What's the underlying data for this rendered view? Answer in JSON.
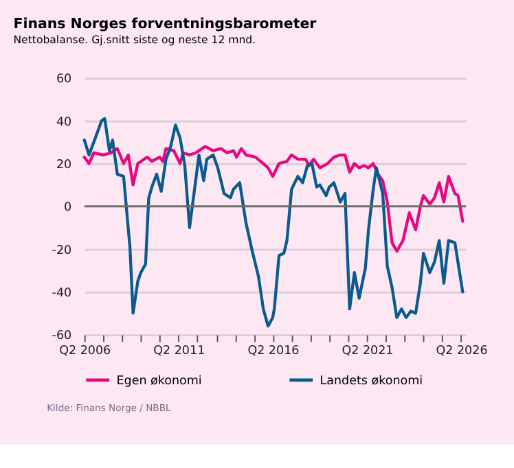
{
  "chart_data": {
    "type": "line",
    "title": "Finans  Norges forventningsbarometer",
    "subtitle": "Nettobalanse. Gj.snitt siste og neste 12 mnd.",
    "annotations": [
      "Kilde: Finans Norge / NBBL"
    ],
    "xlim": [
      "2006-04",
      "2026-07"
    ],
    "xticks": [
      {
        "value": "2006-04",
        "label": "Q2 2006"
      },
      {
        "value": "2007-04",
        "label": null
      },
      {
        "value": "2008-04",
        "label": null
      },
      {
        "value": "2009-04",
        "label": null
      },
      {
        "value": "2010-04",
        "label": null
      },
      {
        "value": "2011-04",
        "label": "Q2 2011"
      },
      {
        "value": "2012-04",
        "label": null
      },
      {
        "value": "2013-04",
        "label": null
      },
      {
        "value": "2014-04",
        "label": null
      },
      {
        "value": "2015-04",
        "label": null
      },
      {
        "value": "2016-04",
        "label": "Q2 2016"
      },
      {
        "value": "2017-04",
        "label": null
      },
      {
        "value": "2018-04",
        "label": null
      },
      {
        "value": "2019-04",
        "label": null
      },
      {
        "value": "2020-04",
        "label": null
      },
      {
        "value": "2021-04",
        "label": "Q2 2021"
      },
      {
        "value": "2022-04",
        "label": null
      },
      {
        "value": "2023-04",
        "label": null
      },
      {
        "value": "2024-04",
        "label": null
      },
      {
        "value": "2025-04",
        "label": null
      },
      {
        "value": "2026-04",
        "label": "Q2 2026"
      }
    ],
    "ylim": [
      -60,
      60
    ],
    "yticks": [
      -60,
      -40,
      -20,
      0,
      20,
      40,
      60
    ],
    "grid": "y",
    "legend": "bottom",
    "marker": "none",
    "line_style": "solid",
    "ref_lines": [
      {
        "axis": "y",
        "value": 0,
        "label": null,
        "color": "#6b6b6b"
      }
    ],
    "series": [
      {
        "name": "Egen økonomi",
        "color": "#e6087f",
        "x": [
          "2006-04",
          "2006-07",
          "2006-10",
          "2007-04",
          "2007-09",
          "2008-01",
          "2008-05",
          "2008-08",
          "2008-11",
          "2009-02",
          "2009-08",
          "2009-11",
          "2010-04",
          "2010-06",
          "2010-08",
          "2011-01",
          "2011-05",
          "2011-07",
          "2011-11",
          "2012-03",
          "2012-09",
          "2013-02",
          "2013-07",
          "2013-11",
          "2014-03",
          "2014-05",
          "2014-08",
          "2014-11",
          "2015-05",
          "2015-10",
          "2016-01",
          "2016-04",
          "2016-08",
          "2017-01",
          "2017-04",
          "2017-08",
          "2018-01",
          "2018-03",
          "2018-06",
          "2018-10",
          "2019-03",
          "2019-07",
          "2019-11",
          "2020-02",
          "2020-05",
          "2020-08",
          "2020-11",
          "2021-02",
          "2021-05",
          "2021-08",
          "2021-11",
          "2022-02",
          "2022-05",
          "2022-08",
          "2022-11",
          "2023-03",
          "2023-07",
          "2023-11",
          "2024-02",
          "2024-04",
          "2024-08",
          "2024-11",
          "2025-02",
          "2025-05",
          "2025-08",
          "2025-12",
          "2026-02",
          "2026-05"
        ],
        "values": [
          23,
          20,
          25,
          24,
          25,
          27,
          20,
          24,
          10,
          20,
          23,
          21,
          23,
          21,
          27,
          26,
          20,
          25,
          24,
          25,
          28,
          26,
          27,
          25,
          26,
          23,
          27,
          24,
          23,
          20,
          18,
          14,
          20,
          21,
          24,
          22,
          22,
          19,
          22,
          18,
          20,
          23,
          24,
          24,
          16,
          20,
          18,
          19,
          18,
          20,
          15,
          12,
          2,
          -17,
          -21,
          -16,
          -3,
          -11,
          0,
          5,
          1,
          4,
          11,
          2,
          14,
          6,
          5,
          -7
        ]
      },
      {
        "name": "Landets økonomi",
        "color": "#0b5a8e",
        "x": [
          "2006-04",
          "2006-07",
          "2006-11",
          "2007-03",
          "2007-05",
          "2007-08",
          "2007-10",
          "2008-01",
          "2008-05",
          "2008-09",
          "2008-11",
          "2009-02",
          "2009-04",
          "2009-07",
          "2009-09",
          "2009-11",
          "2010-02",
          "2010-05",
          "2010-08",
          "2010-11",
          "2011-02",
          "2011-05",
          "2011-08",
          "2011-11",
          "2012-02",
          "2012-05",
          "2012-08",
          "2012-10",
          "2013-02",
          "2013-05",
          "2013-09",
          "2014-01",
          "2014-03",
          "2014-07",
          "2014-11",
          "2015-03",
          "2015-07",
          "2015-10",
          "2016-01",
          "2016-04",
          "2016-05",
          "2016-08",
          "2016-11",
          "2017-01",
          "2017-04",
          "2017-08",
          "2017-11",
          "2018-02",
          "2018-05",
          "2018-08",
          "2018-10",
          "2019-02",
          "2019-04",
          "2019-07",
          "2019-11",
          "2020-02",
          "2020-05",
          "2020-08",
          "2020-11",
          "2021-03",
          "2021-05",
          "2021-08",
          "2021-10",
          "2022-02",
          "2022-05",
          "2022-08",
          "2022-11",
          "2023-02",
          "2023-05",
          "2023-08",
          "2023-11",
          "2024-02",
          "2024-04",
          "2024-08",
          "2024-11",
          "2025-02",
          "2025-05",
          "2025-08",
          "2025-12",
          "2026-05"
        ],
        "values": [
          31,
          24,
          32,
          40,
          41,
          26,
          31,
          15,
          14,
          -19,
          -50,
          -35,
          -31,
          -27,
          4,
          9,
          15,
          7,
          22,
          28,
          38,
          32,
          19,
          -10,
          7,
          24,
          12,
          22,
          24,
          18,
          6,
          4,
          8,
          11,
          -8,
          -21,
          -33,
          -48,
          -56,
          -52,
          -48,
          -23,
          -22,
          -16,
          8,
          14,
          11,
          19,
          20,
          9,
          10,
          5,
          9,
          11,
          2,
          6,
          -48,
          -31,
          -43,
          -29,
          -11,
          8,
          18,
          6,
          -28,
          -38,
          -52,
          -48,
          -52,
          -49,
          -50,
          -36,
          -22,
          -31,
          -26,
          -16,
          -36,
          -16,
          -17,
          -40
        ]
      }
    ]
  }
}
